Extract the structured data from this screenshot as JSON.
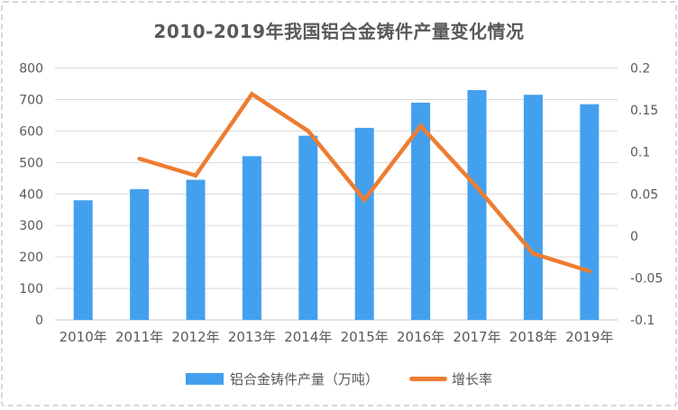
{
  "title": "2010-2019年我国铝合金铸件产量变化情况",
  "legend": {
    "bar_label": "铝合金铸件产量（万吨）",
    "line_label": "增长率"
  },
  "colors": {
    "bar": "#43A0EE",
    "line": "#ED7D31",
    "grid": "#D9D9D9",
    "baseline": "#C6C6C6",
    "axis_text": "#595959",
    "title_text": "#595959",
    "border": "#D7D7D7"
  },
  "chart_data": {
    "type": "combo",
    "title": "2010-2019年我国铝合金铸件产量变化情况",
    "categories": [
      "2010年",
      "2011年",
      "2012年",
      "2013年",
      "2014年",
      "2015年",
      "2016年",
      "2017年",
      "2018年",
      "2019年"
    ],
    "series": [
      {
        "name": "铝合金铸件产量（万吨）",
        "type": "bar",
        "axis": "left",
        "values": [
          380,
          415,
          445,
          520,
          585,
          610,
          690,
          730,
          715,
          685
        ]
      },
      {
        "name": "增长率",
        "type": "line",
        "axis": "right",
        "values": [
          null,
          0.092,
          0.072,
          0.169,
          0.125,
          0.043,
          0.131,
          0.058,
          -0.021,
          -0.042
        ]
      }
    ],
    "left_axis": {
      "min": 0,
      "max": 800,
      "step": 100,
      "tick_labels": [
        "800",
        "700",
        "600",
        "500",
        "400",
        "300",
        "200",
        "100",
        "0"
      ]
    },
    "right_axis": {
      "min": -0.1,
      "max": 0.2,
      "step": 0.05,
      "tick_labels": [
        "0.2",
        "0.15",
        "0.1",
        "0.05",
        "0",
        "-0.05",
        "-0.1"
      ]
    },
    "grid": true,
    "legend_position": "bottom"
  }
}
